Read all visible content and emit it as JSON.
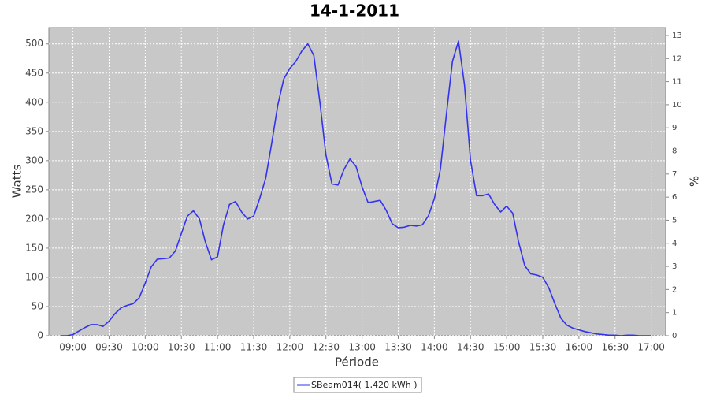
{
  "chart_data": {
    "type": "line",
    "title": "14-1-2011",
    "x_label": "Période",
    "y_label": "Watts",
    "y2_label": "%",
    "x": [
      "08:50",
      "08:55",
      "09:00",
      "09:05",
      "09:10",
      "09:15",
      "09:20",
      "09:25",
      "09:30",
      "09:35",
      "09:40",
      "09:45",
      "09:50",
      "09:55",
      "10:00",
      "10:05",
      "10:10",
      "10:15",
      "10:20",
      "10:25",
      "10:30",
      "10:35",
      "10:40",
      "10:45",
      "10:50",
      "10:55",
      "11:00",
      "11:05",
      "11:10",
      "11:15",
      "11:20",
      "11:25",
      "11:30",
      "11:35",
      "11:40",
      "11:45",
      "11:50",
      "11:55",
      "12:00",
      "12:05",
      "12:10",
      "12:15",
      "12:20",
      "12:25",
      "12:30",
      "12:35",
      "12:40",
      "12:45",
      "12:50",
      "12:55",
      "13:00",
      "13:05",
      "13:10",
      "13:15",
      "13:20",
      "13:25",
      "13:30",
      "13:35",
      "13:40",
      "13:45",
      "13:50",
      "13:55",
      "14:00",
      "14:05",
      "14:10",
      "14:15",
      "14:20",
      "14:25",
      "14:30",
      "14:35",
      "14:40",
      "14:45",
      "14:50",
      "14:55",
      "15:00",
      "15:05",
      "15:10",
      "15:15",
      "15:20",
      "15:25",
      "15:30",
      "15:35",
      "15:40",
      "15:45",
      "15:50",
      "15:55",
      "16:00",
      "16:05",
      "16:10",
      "16:15",
      "16:20",
      "16:25",
      "16:30",
      "16:35",
      "16:40",
      "16:45",
      "16:50",
      "16:55",
      "17:00"
    ],
    "series": [
      {
        "name": "SBeam014( 1,420 kWh )",
        "color": "#3333ee",
        "values": [
          0,
          0,
          2,
          8,
          14,
          19,
          19,
          16,
          25,
          38,
          48,
          52,
          55,
          65,
          90,
          118,
          131,
          132,
          133,
          145,
          175,
          205,
          214,
          200,
          160,
          130,
          135,
          190,
          225,
          230,
          212,
          200,
          205,
          235,
          270,
          330,
          395,
          440,
          458,
          470,
          488,
          500,
          480,
          400,
          310,
          260,
          258,
          285,
          303,
          290,
          255,
          228,
          230,
          232,
          215,
          192,
          185,
          186,
          189,
          188,
          190,
          205,
          235,
          285,
          380,
          470,
          505,
          430,
          300,
          240,
          240,
          243,
          225,
          212,
          222,
          210,
          160,
          120,
          106,
          104,
          100,
          82,
          55,
          30,
          18,
          13,
          10,
          7,
          5,
          3,
          2,
          1,
          1,
          0,
          1,
          1,
          0,
          0,
          0
        ]
      }
    ],
    "xlim": [
      "08:40",
      "17:12"
    ],
    "xticks": [
      "09:00",
      "09:30",
      "10:00",
      "10:30",
      "11:00",
      "11:30",
      "12:00",
      "12:30",
      "13:00",
      "13:30",
      "14:00",
      "14:30",
      "15:00",
      "15:30",
      "16:00",
      "16:30",
      "17:00"
    ],
    "ylim": [
      0,
      528
    ],
    "yticks": [
      0,
      50,
      100,
      150,
      200,
      250,
      300,
      350,
      400,
      450,
      500
    ],
    "y2lim": [
      0,
      13.34
    ],
    "y2ticks": [
      0,
      1,
      2,
      3,
      4,
      5,
      6,
      7,
      8,
      9,
      10,
      11,
      12,
      13
    ],
    "grid": true,
    "plot_background": "#c8c8c8"
  }
}
